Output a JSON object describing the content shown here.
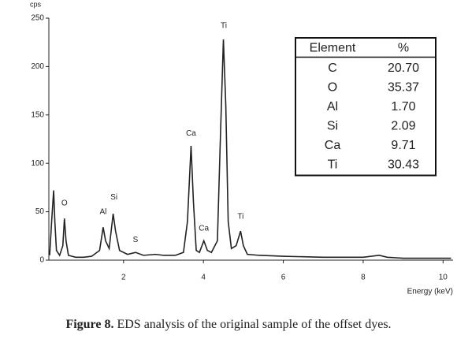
{
  "chart_data": {
    "type": "line",
    "y_label": "cps",
    "x_label": "Energy (keV)",
    "xlim": [
      0.13,
      10.25
    ],
    "ylim": [
      0,
      250
    ],
    "xticks": [
      2,
      4,
      6,
      8,
      10
    ],
    "yticks": [
      0,
      50,
      100,
      150,
      200,
      250
    ],
    "series": [
      {
        "color": "#222222",
        "x": [
          0.15,
          0.2,
          0.25,
          0.28,
          0.32,
          0.4,
          0.48,
          0.52,
          0.56,
          0.62,
          0.8,
          1.0,
          1.2,
          1.4,
          1.49,
          1.55,
          1.64,
          1.74,
          1.8,
          1.9,
          2.1,
          2.3,
          2.5,
          2.8,
          3.0,
          3.3,
          3.5,
          3.6,
          3.69,
          3.75,
          3.82,
          3.9,
          4.01,
          4.1,
          4.2,
          4.35,
          4.42,
          4.5,
          4.56,
          4.62,
          4.7,
          4.82,
          4.93,
          5.0,
          5.1,
          5.4,
          6.0,
          7.0,
          8.0,
          8.4,
          8.6,
          9.0,
          10.0,
          10.2
        ],
        "values": [
          5,
          40,
          72,
          40,
          10,
          5,
          15,
          43,
          20,
          5,
          3,
          3,
          4,
          10,
          34,
          20,
          12,
          48,
          30,
          10,
          6,
          8,
          5,
          6,
          5,
          5,
          8,
          40,
          118,
          60,
          10,
          8,
          20,
          10,
          8,
          20,
          120,
          228,
          160,
          40,
          12,
          15,
          30,
          15,
          6,
          5,
          4,
          3,
          3,
          5,
          3,
          2,
          2,
          2
        ]
      }
    ],
    "annotations": [
      {
        "text": "O",
        "x": 0.52,
        "y": 54
      },
      {
        "text": "Al",
        "x": 1.49,
        "y": 45
      },
      {
        "text": "Si",
        "x": 1.76,
        "y": 60
      },
      {
        "text": "S",
        "x": 2.3,
        "y": 16
      },
      {
        "text": "Ca",
        "x": 3.69,
        "y": 126
      },
      {
        "text": "Ca",
        "x": 4.01,
        "y": 28
      },
      {
        "text": "Ti",
        "x": 4.51,
        "y": 237
      },
      {
        "text": "Ti",
        "x": 4.93,
        "y": 40
      }
    ],
    "table": {
      "columns": [
        "Element",
        "%"
      ],
      "rows": [
        [
          "C",
          "20.70"
        ],
        [
          "O",
          "35.37"
        ],
        [
          "Al",
          "1.70"
        ],
        [
          "Si",
          "2.09"
        ],
        [
          "Ca",
          "9.71"
        ],
        [
          "Ti",
          "30.43"
        ]
      ]
    },
    "caption_label": "Figure 8.",
    "caption": "EDS analysis of the original sample of the offset dyes."
  }
}
